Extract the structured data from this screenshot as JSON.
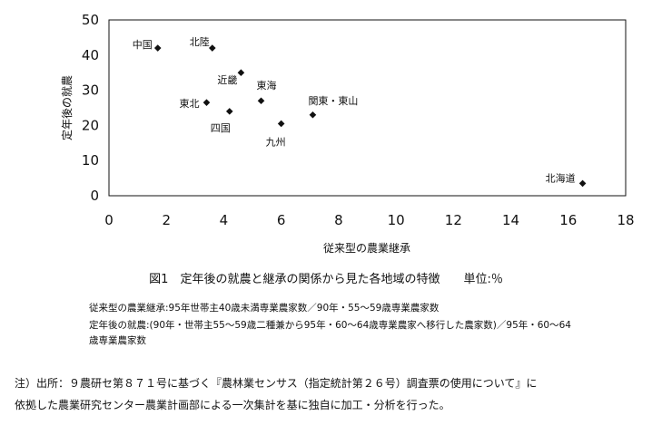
{
  "chart_data": {
    "type": "scatter",
    "title": "",
    "xlabel": "従来型の農業継承",
    "ylabel": "定年後の就農",
    "xlim": [
      0,
      18
    ],
    "ylim": [
      0,
      50
    ],
    "xticks": [
      "0",
      "2",
      "4",
      "6",
      "8",
      "10",
      "12",
      "14",
      "16",
      "18"
    ],
    "yticks": [
      "0",
      "10",
      "20",
      "30",
      "40",
      "50"
    ],
    "grid": false,
    "points": [
      {
        "label": "中国",
        "x": 1.7,
        "y": 42
      },
      {
        "label": "北陸",
        "x": 3.6,
        "y": 42
      },
      {
        "label": "近畿",
        "x": 4.6,
        "y": 35
      },
      {
        "label": "東海",
        "x": 5.3,
        "y": 27
      },
      {
        "label": "東北",
        "x": 3.4,
        "y": 26.5
      },
      {
        "label": "四国",
        "x": 4.2,
        "y": 24
      },
      {
        "label": "関東・東山",
        "x": 7.1,
        "y": 23
      },
      {
        "label": "九州",
        "x": 6.0,
        "y": 20.5
      },
      {
        "label": "北海道",
        "x": 16.5,
        "y": 3.5
      }
    ]
  },
  "caption": "図1　定年後の就農と継承の関係から見た各地域の特徴　　単位:％",
  "definitions": [
    "従来型の農業継承:95年世帯主40歳未満専業農家数／90年・55～59歳専業農家数",
    "定年後の就農:(90年・世帯主55～59歳二種兼から95年・60～64歳専業農家へ移行した農家数)／95年・60～64",
    "歳専業農家数"
  ],
  "notes": [
    "注）出所：９農研セ第８７１号に基づく『農林業センサス（指定統計第２６号）調査票の使用について』に",
    "依拠した農業研究センター農業計画部による一次集計を基に独自に加工・分析を行った。"
  ]
}
